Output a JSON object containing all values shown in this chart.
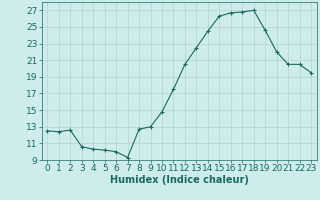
{
  "x": [
    0,
    1,
    2,
    3,
    4,
    5,
    6,
    7,
    8,
    9,
    10,
    11,
    12,
    13,
    14,
    15,
    16,
    17,
    18,
    19,
    20,
    21,
    22,
    23
  ],
  "y": [
    12.5,
    12.4,
    12.6,
    10.6,
    10.3,
    10.2,
    10.0,
    9.3,
    12.7,
    13.0,
    14.8,
    17.5,
    20.5,
    22.5,
    24.5,
    26.3,
    26.7,
    26.8,
    27.0,
    24.6,
    22.0,
    20.5,
    20.5,
    19.5
  ],
  "xlabel": "Humidex (Indice chaleur)",
  "xlim": [
    -0.5,
    23.5
  ],
  "ylim": [
    9,
    28
  ],
  "yticks": [
    9,
    11,
    13,
    15,
    17,
    19,
    21,
    23,
    25,
    27
  ],
  "xticks": [
    0,
    1,
    2,
    3,
    4,
    5,
    6,
    7,
    8,
    9,
    10,
    11,
    12,
    13,
    14,
    15,
    16,
    17,
    18,
    19,
    20,
    21,
    22,
    23
  ],
  "line_color": "#1a6b5a",
  "marker": "+",
  "marker_size": 3,
  "marker_lw": 0.8,
  "line_width": 0.8,
  "bg_color": "#ceecea",
  "grid_color": "#b8d8d4",
  "axis_color": "#1a6b5a",
  "label_color": "#1a6b5a",
  "xlabel_fontsize": 7,
  "tick_fontsize": 6.5
}
